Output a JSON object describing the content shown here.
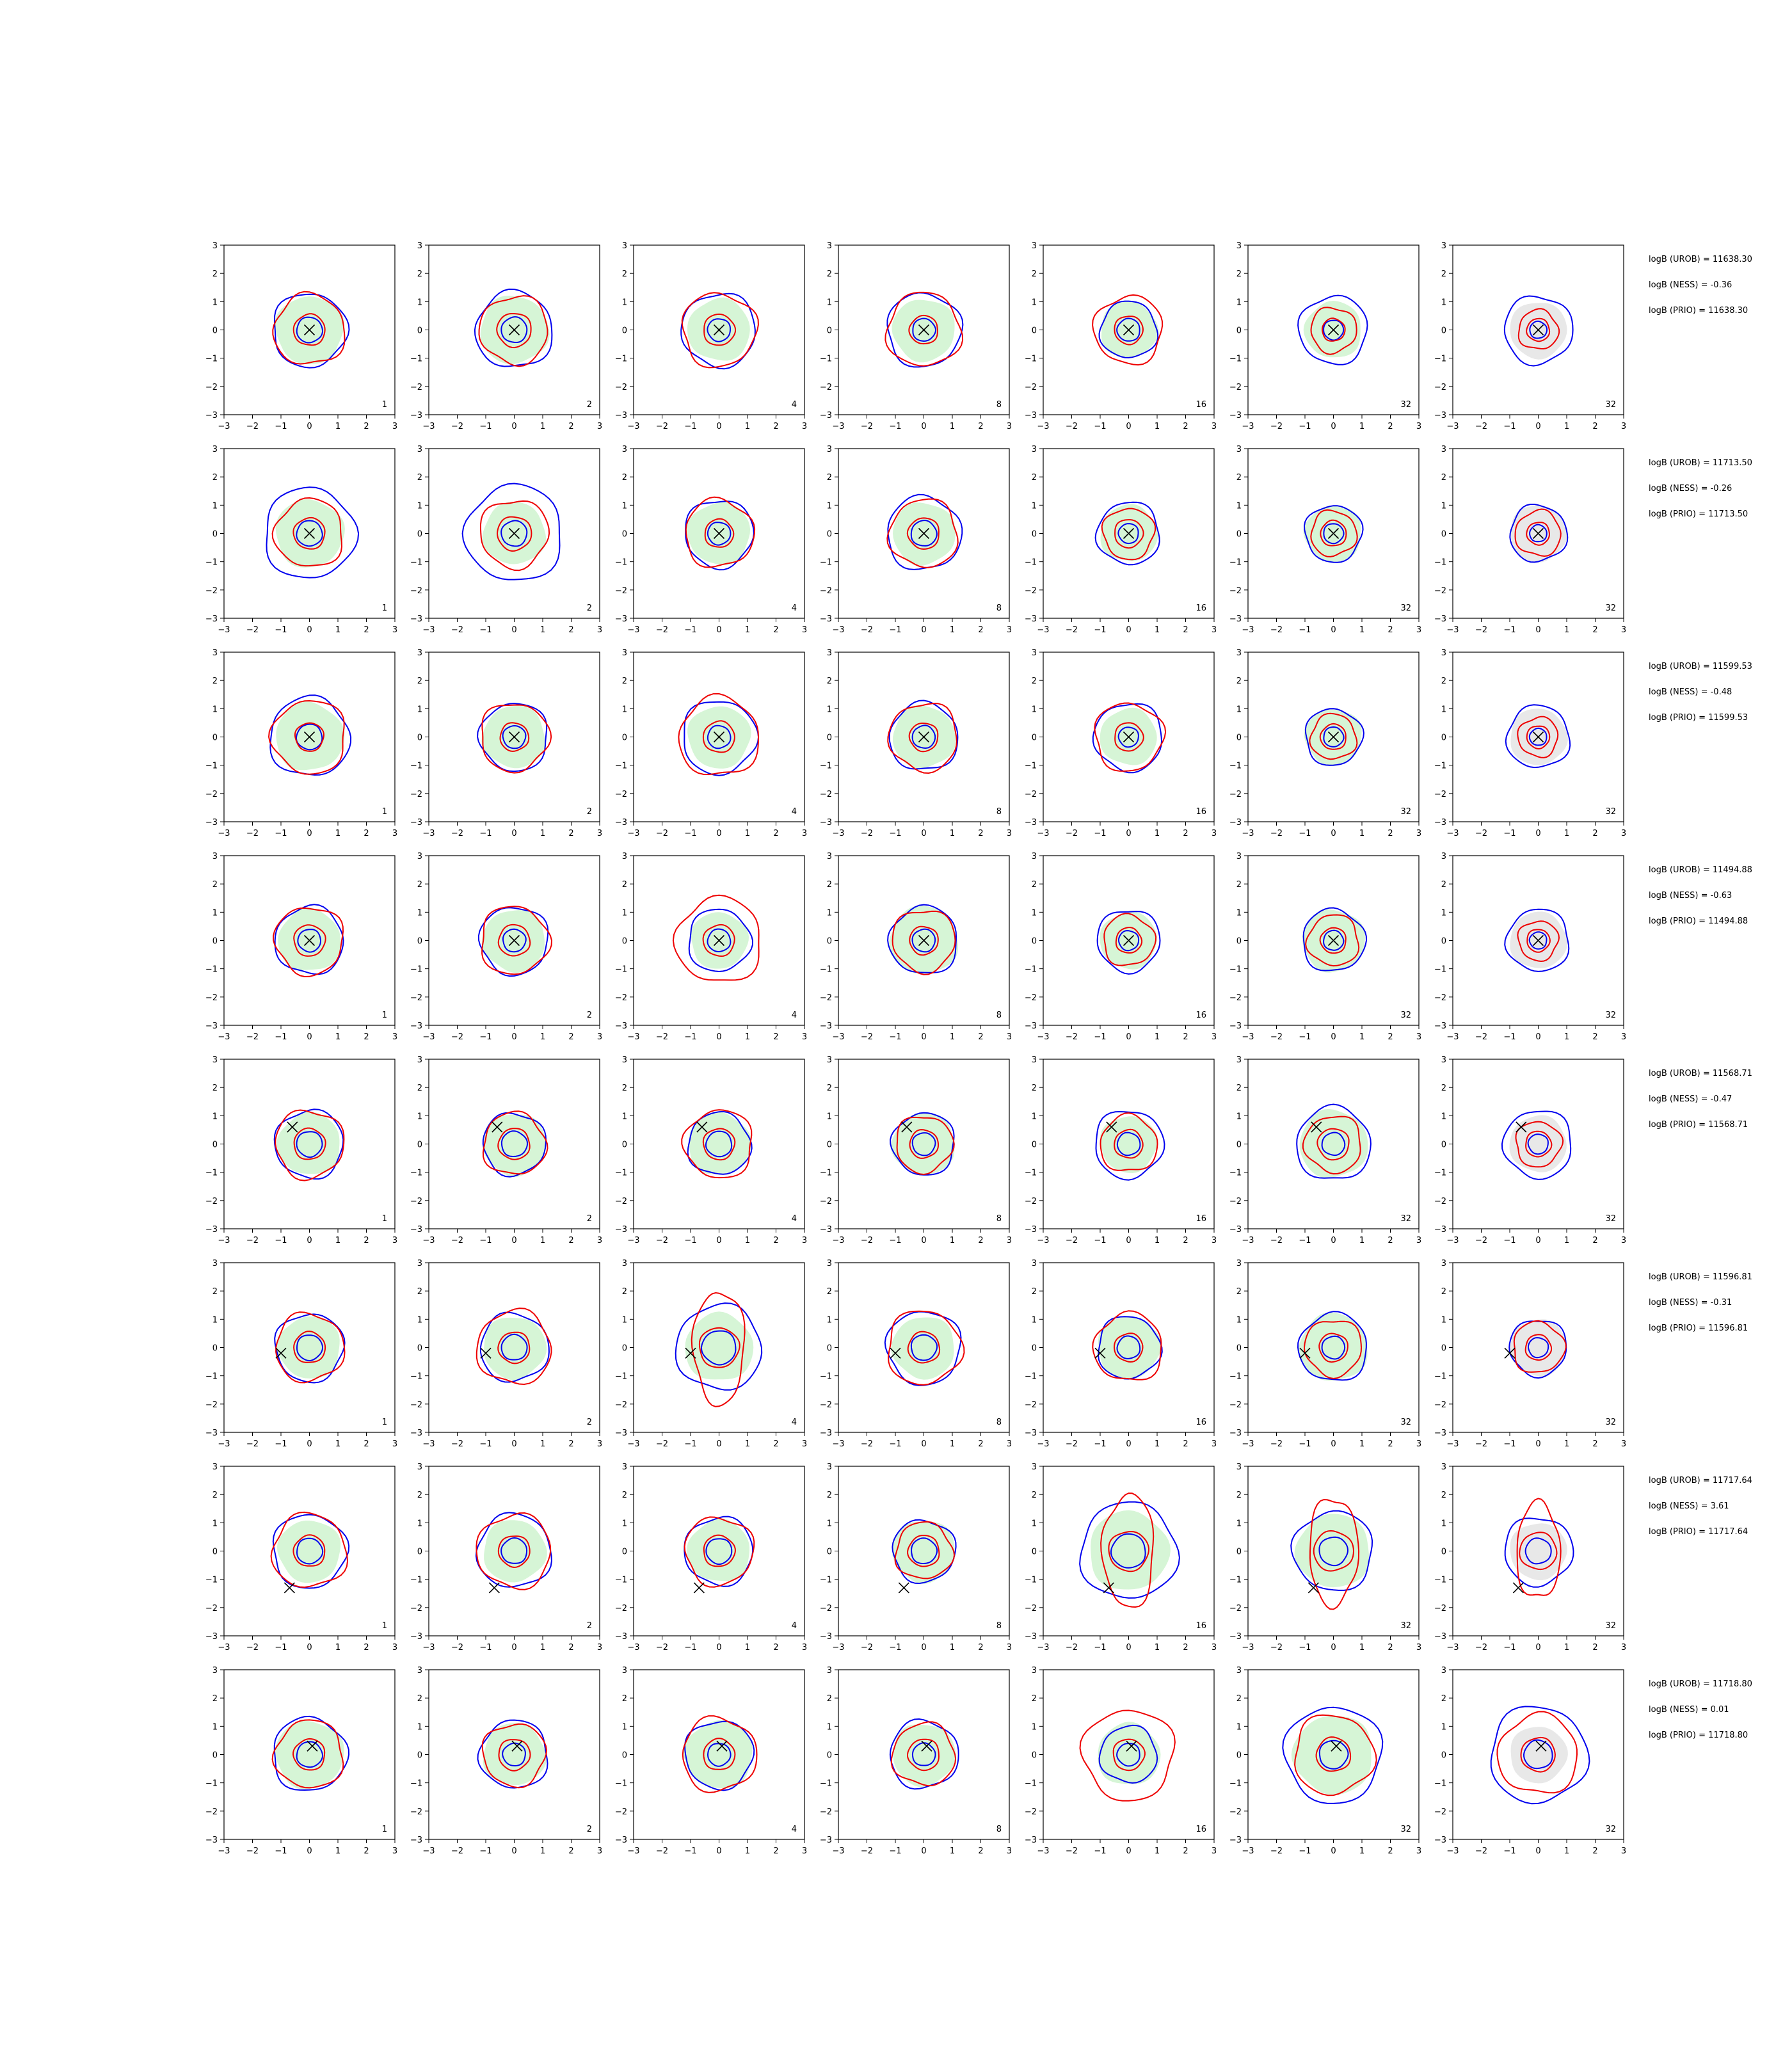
{
  "chart_data": {
    "type": "contour",
    "layout": {
      "rows": 8,
      "cols": 7
    },
    "xlim": [
      -3,
      3
    ],
    "ylim": [
      -3,
      3
    ],
    "ticks": [
      "−3",
      "−2",
      "−1",
      "0",
      "1",
      "2",
      "3"
    ],
    "tick_values": [
      -3,
      -2,
      -1,
      0,
      1,
      2,
      3
    ],
    "panel_labels": [
      "1",
      "2",
      "4",
      "8",
      "16",
      "32",
      "32"
    ],
    "colors": {
      "fill": "#d6f5d6",
      "fill_last": "#e8e8e8",
      "blue": "#0000ee",
      "red": "#ee0000",
      "marker": "#000000"
    },
    "rows": [
      {
        "marker": [
          0,
          0
        ],
        "stats": [
          "logB (UROB) = 11638.30",
          "logB (NESS) = -0.36",
          "logB (PRIO) = 11638.30"
        ],
        "panels": [
          {
            "fill": 1.2,
            "blue": [
              1.3,
              0.45
            ],
            "red": [
              1.25,
              0.55
            ]
          },
          {
            "fill": 1.2,
            "blue": [
              1.35,
              0.45
            ],
            "red": [
              1.2,
              0.6
            ]
          },
          {
            "fill": 1.1,
            "blue": [
              1.3,
              0.4
            ],
            "red": [
              1.3,
              0.55
            ]
          },
          {
            "fill": 1.1,
            "blue": [
              1.3,
              0.4
            ],
            "red": [
              1.3,
              0.5
            ]
          },
          {
            "fill": 1.0,
            "blue": [
              1.0,
              0.4
            ],
            "red": [
              1.2,
              0.5
            ]
          },
          {
            "fill": 1.0,
            "blue": [
              1.2,
              0.35
            ],
            "red": [
              0.8,
              0.4
            ]
          },
          {
            "fill": 0,
            "blue": [
              1.2,
              0.3
            ],
            "red": [
              0.7,
              0.4
            ]
          }
        ]
      },
      {
        "marker": [
          0,
          0
        ],
        "stats": [
          "logB (UROB) = 11713.50",
          "logB (NESS) = -0.26",
          "logB (PRIO) = 11713.50"
        ],
        "panels": [
          {
            "fill": 1.2,
            "blue": [
              1.6,
              0.45
            ],
            "red": [
              1.2,
              0.55
            ]
          },
          {
            "fill": 1.1,
            "blue": [
              1.7,
              0.45
            ],
            "red": [
              1.2,
              0.6
            ]
          },
          {
            "fill": 1.1,
            "blue": [
              1.2,
              0.4
            ],
            "red": [
              1.2,
              0.5
            ]
          },
          {
            "fill": 1.1,
            "blue": [
              1.3,
              0.45
            ],
            "red": [
              1.2,
              0.55
            ]
          },
          {
            "fill": 1.0,
            "blue": [
              1.1,
              0.35
            ],
            "red": [
              0.9,
              0.5
            ]
          },
          {
            "fill": 1.0,
            "blue": [
              1.0,
              0.35
            ],
            "red": [
              0.8,
              0.45
            ]
          },
          {
            "fill": 0,
            "blue": [
              1.0,
              0.3
            ],
            "red": [
              0.8,
              0.4
            ]
          }
        ]
      },
      {
        "marker": [
          0,
          0
        ],
        "stats": [
          "logB (UROB) = 11599.53",
          "logB (NESS) = -0.48",
          "logB (PRIO) = 11599.53"
        ],
        "panels": [
          {
            "fill": 1.2,
            "blue": [
              1.4,
              0.45
            ],
            "red": [
              1.3,
              0.5
            ]
          },
          {
            "fill": 1.1,
            "blue": [
              1.2,
              0.4
            ],
            "red": [
              1.2,
              0.5
            ]
          },
          {
            "fill": 1.1,
            "blue": [
              1.3,
              0.4
            ],
            "red": [
              1.4,
              0.55
            ]
          },
          {
            "fill": 1.1,
            "blue": [
              1.2,
              0.4
            ],
            "red": [
              1.2,
              0.5
            ]
          },
          {
            "fill": 1.0,
            "blue": [
              1.2,
              0.35
            ],
            "red": [
              1.2,
              0.5
            ]
          },
          {
            "fill": 1.0,
            "blue": [
              1.0,
              0.35
            ],
            "red": [
              0.8,
              0.45
            ]
          },
          {
            "fill": 0,
            "blue": [
              1.1,
              0.3
            ],
            "red": [
              0.7,
              0.4
            ]
          }
        ]
      },
      {
        "marker": [
          0,
          0
        ],
        "stats": [
          "logB (UROB) = 11494.88",
          "logB (NESS) = -0.63",
          "logB (PRIO) = 11494.88"
        ],
        "panels": [
          {
            "fill": 1.1,
            "blue": [
              1.2,
              0.4
            ],
            "red": [
              1.2,
              0.55
            ]
          },
          {
            "fill": 1.1,
            "blue": [
              1.2,
              0.4
            ],
            "red": [
              1.2,
              0.55
            ]
          },
          {
            "fill": 1.0,
            "blue": [
              1.1,
              0.4
            ],
            "red": [
              1.5,
              0.55
            ]
          },
          {
            "fill": 1.2,
            "blue": [
              1.2,
              0.4
            ],
            "red": [
              1.1,
              0.5
            ]
          },
          {
            "fill": 1.0,
            "blue": [
              1.1,
              0.35
            ],
            "red": [
              0.9,
              0.45
            ]
          },
          {
            "fill": 1.1,
            "blue": [
              1.1,
              0.35
            ],
            "red": [
              0.9,
              0.45
            ]
          },
          {
            "fill": 0,
            "blue": [
              1.1,
              0.3
            ],
            "red": [
              0.7,
              0.4
            ]
          }
        ]
      },
      {
        "marker": [
          -0.6,
          0.6
        ],
        "stats": [
          "logB (UROB) = 11568.71",
          "logB (NESS) = -0.47",
          "logB (PRIO) = 11568.71"
        ],
        "panels": [
          {
            "fill": 1.1,
            "blue": [
              1.2,
              0.45
            ],
            "red": [
              1.2,
              0.55
            ]
          },
          {
            "fill": 1.1,
            "blue": [
              1.1,
              0.45
            ],
            "red": [
              1.1,
              0.55
            ]
          },
          {
            "fill": 1.1,
            "blue": [
              1.1,
              0.45
            ],
            "red": [
              1.2,
              0.55
            ]
          },
          {
            "fill": 1.1,
            "blue": [
              1.1,
              0.4
            ],
            "red": [
              1.0,
              0.5
            ]
          },
          {
            "fill": 1.0,
            "blue": [
              1.2,
              0.4
            ],
            "red": [
              1.0,
              0.5
            ]
          },
          {
            "fill": 1.2,
            "blue": [
              1.3,
              0.4
            ],
            "red": [
              1.0,
              0.55
            ]
          },
          {
            "fill": 0,
            "blue": [
              1.2,
              0.35
            ],
            "red": [
              0.8,
              0.45
            ]
          }
        ]
      },
      {
        "marker": [
          -1.0,
          -0.2
        ],
        "stats": [
          "logB (UROB) = 11596.81",
          "logB (NESS) = -0.31",
          "logB (PRIO) = 11596.81"
        ],
        "panels": [
          {
            "fill": 1.1,
            "blue": [
              1.2,
              0.45
            ],
            "red": [
              1.2,
              0.55
            ]
          },
          {
            "fill": 1.1,
            "blue": [
              1.2,
              0.45
            ],
            "red": [
              1.3,
              0.55
            ]
          },
          {
            "fill": 1.2,
            "blue": [
              1.5,
              0.6
            ],
            "red": [
              2.0,
              0.7
            ]
          },
          {
            "fill": 1.1,
            "blue": [
              1.3,
              0.45
            ],
            "red": [
              1.3,
              0.55
            ]
          },
          {
            "fill": 1.1,
            "blue": [
              1.1,
              0.4
            ],
            "red": [
              1.2,
              0.5
            ]
          },
          {
            "fill": 1.2,
            "blue": [
              1.2,
              0.4
            ],
            "red": [
              1.0,
              0.5
            ]
          },
          {
            "fill": 0,
            "blue": [
              1.0,
              0.35
            ],
            "red": [
              0.9,
              0.45
            ]
          }
        ]
      },
      {
        "marker": [
          -0.7,
          -1.3
        ],
        "stats": [
          "logB (UROB) = 11717.64",
          "logB (NESS) = 3.61",
          "logB (PRIO) = 11717.64"
        ],
        "panels": [
          {
            "fill": 1.1,
            "blue": [
              1.3,
              0.45
            ],
            "red": [
              1.3,
              0.55
            ]
          },
          {
            "fill": 1.1,
            "blue": [
              1.3,
              0.45
            ],
            "red": [
              1.3,
              0.55
            ]
          },
          {
            "fill": 1.1,
            "blue": [
              1.2,
              0.45
            ],
            "red": [
              1.2,
              0.55
            ]
          },
          {
            "fill": 1.1,
            "blue": [
              1.1,
              0.45
            ],
            "red": [
              1.0,
              0.55
            ]
          },
          {
            "fill": 1.4,
            "blue": [
              1.7,
              0.6
            ],
            "red": [
              2.0,
              0.7
            ]
          },
          {
            "fill": 1.3,
            "blue": [
              1.4,
              0.5
            ],
            "red": [
              1.9,
              0.7
            ]
          },
          {
            "fill": 0,
            "blue": [
              1.2,
              0.45
            ],
            "red": [
              1.7,
              0.65
            ]
          }
        ]
      },
      {
        "marker": [
          0.1,
          0.3
        ],
        "stats": [
          "logB (UROB) = 11718.80",
          "logB (NESS) = 0.01",
          "logB (PRIO) = 11718.80"
        ],
        "panels": [
          {
            "fill": 1.2,
            "blue": [
              1.3,
              0.45
            ],
            "red": [
              1.2,
              0.55
            ]
          },
          {
            "fill": 1.1,
            "blue": [
              1.2,
              0.4
            ],
            "red": [
              1.1,
              0.55
            ]
          },
          {
            "fill": 1.2,
            "blue": [
              1.2,
              0.4
            ],
            "red": [
              1.3,
              0.55
            ]
          },
          {
            "fill": 1.1,
            "blue": [
              1.2,
              0.4
            ],
            "red": [
              1.1,
              0.55
            ]
          },
          {
            "fill": 1.1,
            "blue": [
              1.0,
              0.4
            ],
            "red": [
              1.6,
              0.55
            ]
          },
          {
            "fill": 1.4,
            "blue": [
              1.7,
              0.5
            ],
            "red": [
              1.4,
              0.6
            ]
          },
          {
            "fill": 0,
            "blue": [
              1.7,
              0.5
            ],
            "red": [
              1.4,
              0.6
            ]
          }
        ]
      }
    ]
  }
}
